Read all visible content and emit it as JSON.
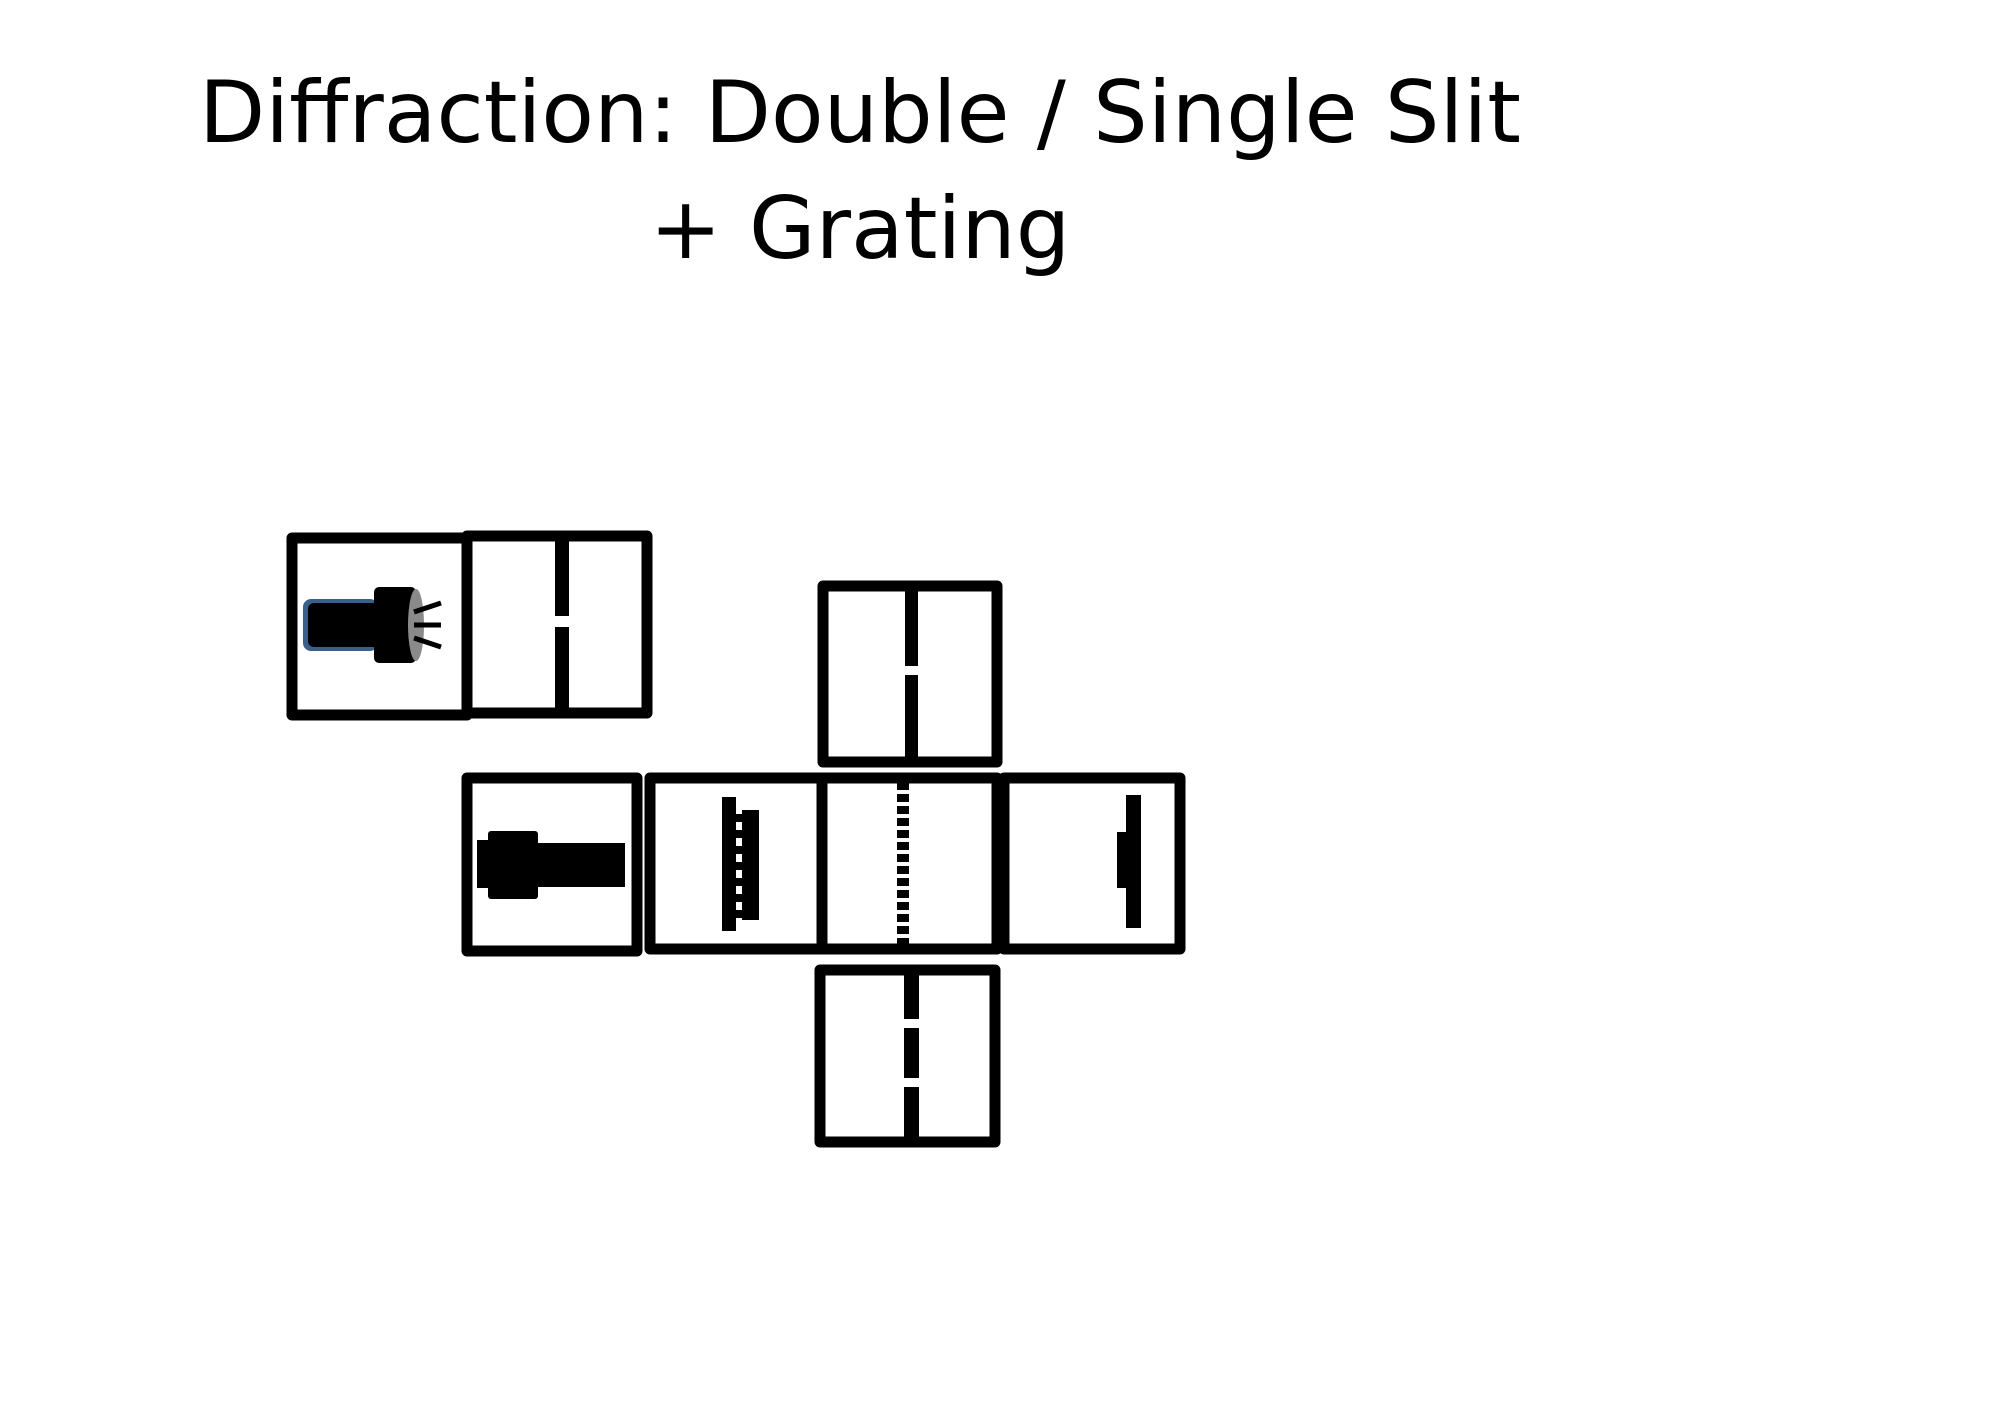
{
  "title": "Diffraction: Double / Single Slit + Grating",
  "colors": {
    "ink": "#000000",
    "background": "#ffffff",
    "lamp_accent": "#3a5f8a",
    "lamp_lens": "#8a8a8a"
  },
  "pieces": [
    {
      "name": "lamp-tile",
      "icon": "lamp-icon"
    },
    {
      "name": "single-slit-tile",
      "icon": "single-slit-icon"
    },
    {
      "name": "single-slit-tile-top",
      "icon": "single-slit-icon"
    },
    {
      "name": "laser-tile",
      "icon": "laser-icon"
    },
    {
      "name": "double-slit-tile",
      "icon": "double-slit-icon"
    },
    {
      "name": "grating-tile",
      "icon": "grating-icon"
    },
    {
      "name": "screen-tile",
      "icon": "screen-icon"
    },
    {
      "name": "double-slit-tile-bottom",
      "icon": "double-slit-icon"
    }
  ]
}
